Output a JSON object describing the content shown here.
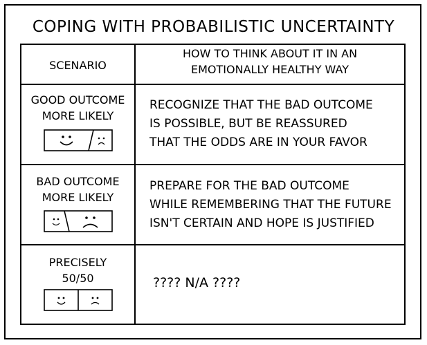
{
  "title": "COPING WITH PROBABILISTIC UNCERTAINTY",
  "table": {
    "header": {
      "scenario": "SCENARIO",
      "how_line1": "HOW TO THINK ABOUT IT IN AN",
      "how_line2": "EMOTIONALLY HEALTHY WAY"
    },
    "rows": [
      {
        "scenario_line1": "GOOD OUTCOME",
        "scenario_line2": "MORE LIKELY",
        "advice_line1": "RECOGNIZE THAT THE BAD OUTCOME",
        "advice_line2": "IS POSSIBLE, BUT BE REASSURED",
        "advice_line3": "THAT THE ODDS ARE IN YOUR FAVOR",
        "icon": "happy-sad-split-icon"
      },
      {
        "scenario_line1": "BAD OUTCOME",
        "scenario_line2": "MORE LIKELY",
        "advice_line1": "PREPARE FOR THE BAD OUTCOME",
        "advice_line2": "WHILE REMEMBERING THAT THE FUTURE",
        "advice_line3": "ISN'T CERTAIN AND HOPE IS JUSTIFIED",
        "icon": "small-happy-large-sad-split-icon"
      },
      {
        "scenario_line1": "PRECISELY",
        "scenario_line2": "50/50",
        "advice_line1": "???? N/A ????",
        "icon": "equal-happy-sad-split-icon"
      }
    ]
  }
}
